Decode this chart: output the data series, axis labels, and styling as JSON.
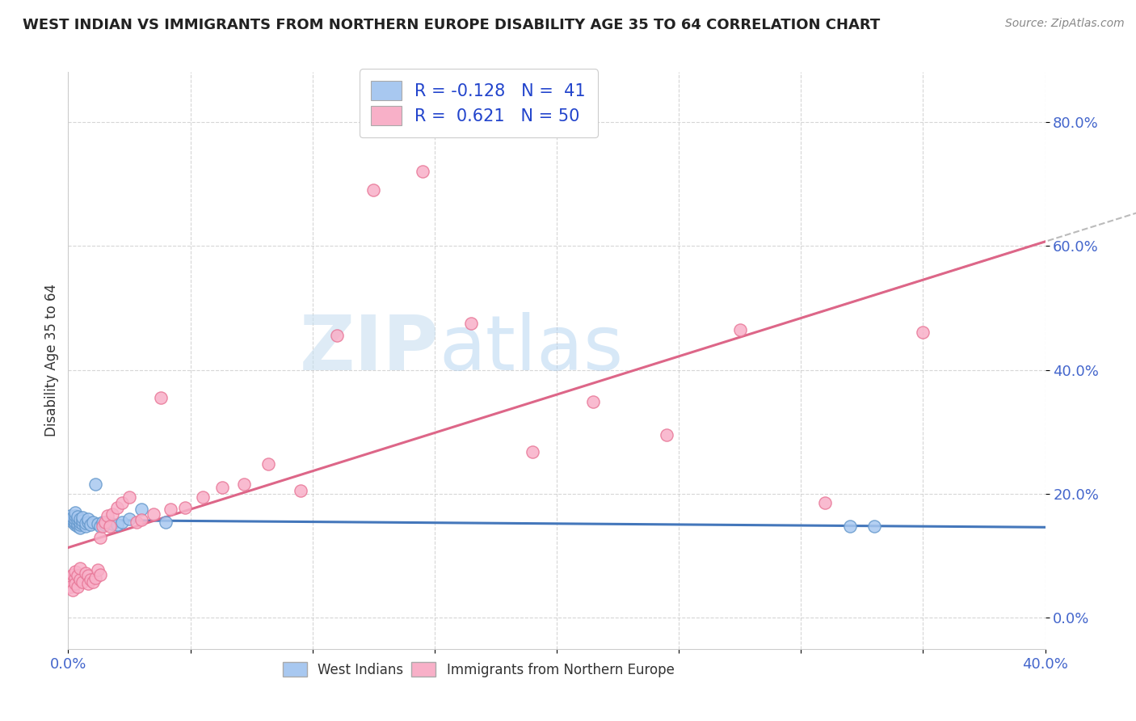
{
  "title": "WEST INDIAN VS IMMIGRANTS FROM NORTHERN EUROPE DISABILITY AGE 35 TO 64 CORRELATION CHART",
  "source": "Source: ZipAtlas.com",
  "ylabel": "Disability Age 35 to 64",
  "xlim": [
    0.0,
    0.4
  ],
  "ylim": [
    -0.05,
    0.88
  ],
  "xticks": [
    0.0,
    0.05,
    0.1,
    0.15,
    0.2,
    0.25,
    0.3,
    0.35,
    0.4
  ],
  "yticks": [
    0.0,
    0.2,
    0.4,
    0.6,
    0.8
  ],
  "series1_color": "#a8c8f0",
  "series1_edge": "#6699cc",
  "series2_color": "#f8b0c8",
  "series2_edge": "#e87898",
  "line1_color": "#4477bb",
  "line2_color": "#dd6688",
  "R1": -0.128,
  "N1": 41,
  "R2": 0.621,
  "N2": 50,
  "legend_label1": "West Indians",
  "legend_label2": "Immigrants from Northern Europe",
  "series1_x": [
    0.001,
    0.001,
    0.002,
    0.002,
    0.002,
    0.003,
    0.003,
    0.003,
    0.003,
    0.003,
    0.004,
    0.004,
    0.004,
    0.004,
    0.005,
    0.005,
    0.005,
    0.005,
    0.006,
    0.006,
    0.006,
    0.007,
    0.007,
    0.008,
    0.008,
    0.009,
    0.01,
    0.011,
    0.012,
    0.013,
    0.014,
    0.015,
    0.016,
    0.018,
    0.02,
    0.022,
    0.025,
    0.03,
    0.04,
    0.32,
    0.33
  ],
  "series1_y": [
    0.16,
    0.165,
    0.155,
    0.158,
    0.162,
    0.15,
    0.155,
    0.16,
    0.165,
    0.17,
    0.148,
    0.152,
    0.158,
    0.163,
    0.145,
    0.15,
    0.155,
    0.16,
    0.152,
    0.157,
    0.162,
    0.148,
    0.153,
    0.155,
    0.16,
    0.15,
    0.155,
    0.215,
    0.152,
    0.148,
    0.155,
    0.15,
    0.155,
    0.152,
    0.15,
    0.155,
    0.16,
    0.175,
    0.155,
    0.148,
    0.148
  ],
  "series2_x": [
    0.001,
    0.001,
    0.002,
    0.002,
    0.003,
    0.003,
    0.003,
    0.004,
    0.004,
    0.005,
    0.005,
    0.006,
    0.007,
    0.008,
    0.008,
    0.009,
    0.01,
    0.011,
    0.012,
    0.013,
    0.013,
    0.014,
    0.015,
    0.016,
    0.017,
    0.018,
    0.02,
    0.022,
    0.025,
    0.028,
    0.03,
    0.035,
    0.038,
    0.042,
    0.048,
    0.055,
    0.063,
    0.072,
    0.082,
    0.095,
    0.11,
    0.125,
    0.145,
    0.165,
    0.19,
    0.215,
    0.245,
    0.275,
    0.31,
    0.35
  ],
  "series2_y": [
    0.06,
    0.05,
    0.07,
    0.045,
    0.065,
    0.055,
    0.075,
    0.068,
    0.05,
    0.062,
    0.08,
    0.058,
    0.072,
    0.068,
    0.055,
    0.062,
    0.058,
    0.065,
    0.078,
    0.07,
    0.13,
    0.148,
    0.155,
    0.165,
    0.148,
    0.168,
    0.178,
    0.185,
    0.195,
    0.155,
    0.158,
    0.168,
    0.355,
    0.175,
    0.178,
    0.195,
    0.21,
    0.215,
    0.248,
    0.205,
    0.455,
    0.69,
    0.72,
    0.475,
    0.268,
    0.348,
    0.295,
    0.465,
    0.185,
    0.46
  ],
  "watermark_zip": "ZIP",
  "watermark_atlas": "atlas",
  "background_color": "#ffffff",
  "grid_color": "#cccccc",
  "tick_color": "#4466cc",
  "title_color": "#222222",
  "source_color": "#888888",
  "ylabel_color": "#333333"
}
